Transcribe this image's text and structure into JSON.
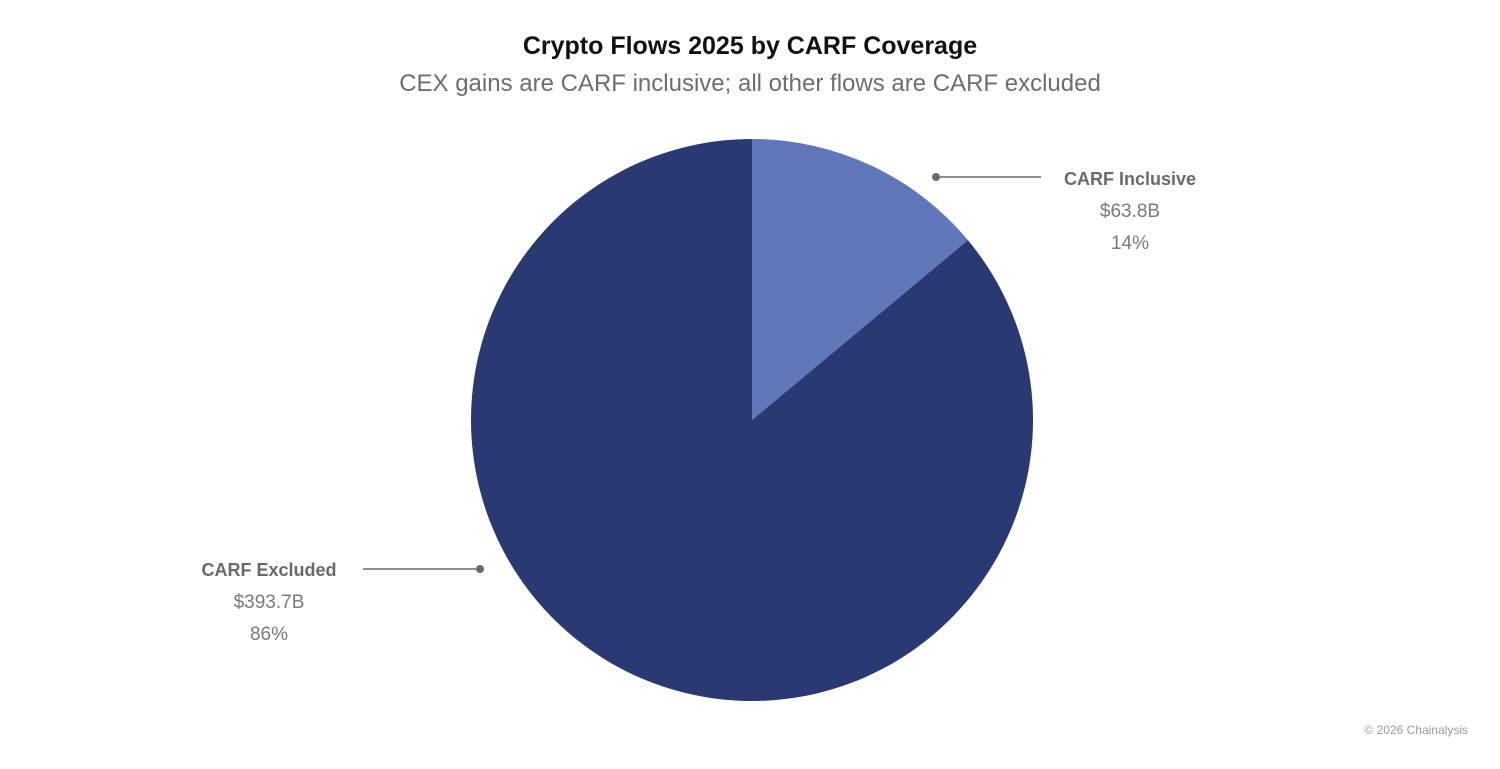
{
  "chart_data": {
    "type": "pie",
    "title": "Crypto Flows 2025 by CARF Coverage",
    "subtitle": "CEX gains are CARF inclusive; all other flows are CARF excluded",
    "start_angle_deg": 0,
    "direction": "clockwise",
    "slices": [
      {
        "name": "CARF Inclusive",
        "value": 63.8,
        "value_label": "$63.8B",
        "percent": 14,
        "percent_label": "14%",
        "color": "#6077b9"
      },
      {
        "name": "CARF Excluded",
        "value": 393.7,
        "value_label": "$393.7B",
        "percent": 86,
        "percent_label": "86%",
        "color": "#2a3972"
      }
    ],
    "leader_line_color": "#6a6a6a"
  },
  "footer": {
    "credit": "© 2026 Chainalysis"
  }
}
